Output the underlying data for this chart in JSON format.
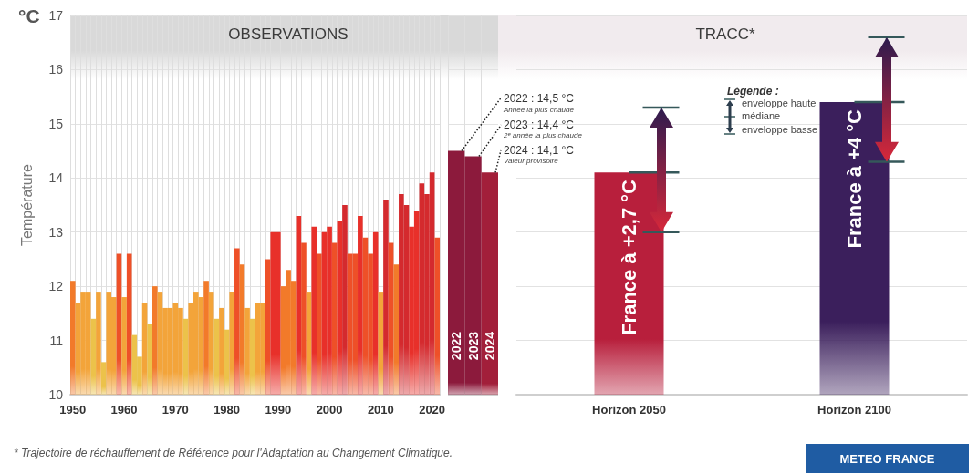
{
  "chart_data": [
    {
      "type": "bar",
      "title": "OBSERVATIONS",
      "ylabel": "Température",
      "categories": [
        "1950",
        null,
        null,
        null,
        null,
        null,
        null,
        null,
        null,
        null,
        "1960",
        null,
        null,
        null,
        null,
        null,
        null,
        null,
        null,
        null,
        "1970",
        null,
        null,
        null,
        null,
        null,
        null,
        null,
        null,
        null,
        "1980",
        null,
        null,
        null,
        null,
        null,
        null,
        null,
        null,
        null,
        "1990",
        null,
        null,
        null,
        null,
        null,
        null,
        null,
        null,
        null,
        "2000",
        null,
        null,
        null,
        null,
        null,
        null,
        null,
        null,
        null,
        "2010",
        null,
        null,
        null,
        null,
        null,
        null,
        null,
        null,
        null,
        "2020",
        null
      ],
      "values": [
        12.1,
        11.7,
        11.9,
        11.9,
        11.4,
        11.9,
        10.6,
        11.9,
        11.8,
        12.6,
        11.8,
        12.6,
        11.1,
        10.7,
        11.7,
        11.3,
        12.0,
        11.9,
        11.6,
        11.6,
        11.7,
        11.6,
        11.4,
        11.7,
        11.9,
        11.8,
        12.1,
        11.9,
        11.4,
        11.6,
        11.2,
        11.9,
        12.7,
        12.4,
        11.6,
        11.4,
        11.7,
        11.7,
        12.5,
        13.0,
        13.0,
        12.0,
        12.3,
        12.1,
        13.3,
        12.8,
        11.9,
        13.1,
        12.6,
        13.0,
        13.1,
        12.8,
        13.2,
        13.5,
        12.6,
        12.6,
        13.3,
        12.9,
        12.6,
        13.0,
        11.9,
        13.6,
        12.8,
        12.4,
        13.7,
        13.5,
        13.1,
        13.4,
        13.9,
        13.7,
        14.1,
        12.9
      ],
      "colors": [
        "#f27a2a",
        "#f3a43a",
        "#f3a43a",
        "#f3a43a",
        "#ecc24a",
        "#f3a43a",
        "#ecc24a",
        "#f3a43a",
        "#f3a43a",
        "#ee5028",
        "#f3a43a",
        "#ee5028",
        "#ecc24a",
        "#ecc24a",
        "#f3a43a",
        "#ecc24a",
        "#f27a2a",
        "#f3a43a",
        "#f3a43a",
        "#f3a43a",
        "#f3a43a",
        "#f3a43a",
        "#ecc24a",
        "#f3a43a",
        "#f3a43a",
        "#f3a43a",
        "#f27a2a",
        "#f3a43a",
        "#ecc24a",
        "#f3a43a",
        "#ecc24a",
        "#f3a43a",
        "#ee5028",
        "#f27a2a",
        "#f3a43a",
        "#ecc24a",
        "#f3a43a",
        "#f3a43a",
        "#ee5028",
        "#e8302a",
        "#e8302a",
        "#f27a2a",
        "#f27a2a",
        "#f27a2a",
        "#e8302a",
        "#ee5028",
        "#f3a43a",
        "#e8302a",
        "#ee5028",
        "#e8302a",
        "#e8302a",
        "#ee5028",
        "#e8302a",
        "#d42a2e",
        "#ee5028",
        "#ee5028",
        "#e8302a",
        "#ee5028",
        "#ee5028",
        "#e8302a",
        "#f3a43a",
        "#d42a2e",
        "#ee5028",
        "#f27a2a",
        "#d42a2e",
        "#d42a2e",
        "#e8302a",
        "#e8302a",
        "#d42a2e",
        "#d42a2e",
        "#d42a2e",
        "#ee5028"
      ],
      "ylim": [
        10,
        17
      ],
      "yticks": [
        10,
        11,
        12,
        13,
        14,
        15,
        16,
        17
      ],
      "grid": true,
      "annotations": [
        "°C",
        "* Trajectoire de réchauffement de Référence pour l'Adaptation au Changement Climatique.",
        "METEO FRANCE"
      ]
    },
    {
      "type": "bar",
      "categories": [
        "2022",
        "2023",
        "2024"
      ],
      "values": [
        14.5,
        14.4,
        14.1
      ],
      "colors": [
        "#8c1a3c",
        "#8c1a3c",
        "#a21f3a"
      ],
      "ylim": [
        10,
        17
      ],
      "yticks": [
        10,
        11,
        12,
        13,
        14,
        15,
        16,
        17
      ],
      "grid": true,
      "tick_labels": "x",
      "annotations": [
        "2022 :   14,5 °C",
        "Année la plus chaude",
        "2023 :   14,4 °C",
        "2ᵉ année la plus chaude",
        "2024 :   14,1 °C",
        "Valeur provisoire"
      ]
    },
    {
      "type": "bar",
      "title": "TRACC*",
      "categories": [
        "Horizon 2050",
        "Horizon 2100"
      ],
      "values": [
        14.1,
        15.4
      ],
      "colors": [
        "#b81f3c",
        "#3b1f5c"
      ],
      "errors": [
        [
          13.0,
          15.3
        ],
        [
          14.3,
          16.6
        ]
      ],
      "ylim": [
        10,
        17
      ],
      "yticks": [
        10,
        11,
        12,
        13,
        14,
        15,
        16,
        17
      ],
      "grid": "y",
      "tick_labels": "x",
      "legend_title": "Légende :",
      "annotations": [
        "France à +2,7 °C",
        "France à +4 °C",
        "enveloppe haute",
        "médiane",
        "enveloppe basse"
      ]
    }
  ]
}
